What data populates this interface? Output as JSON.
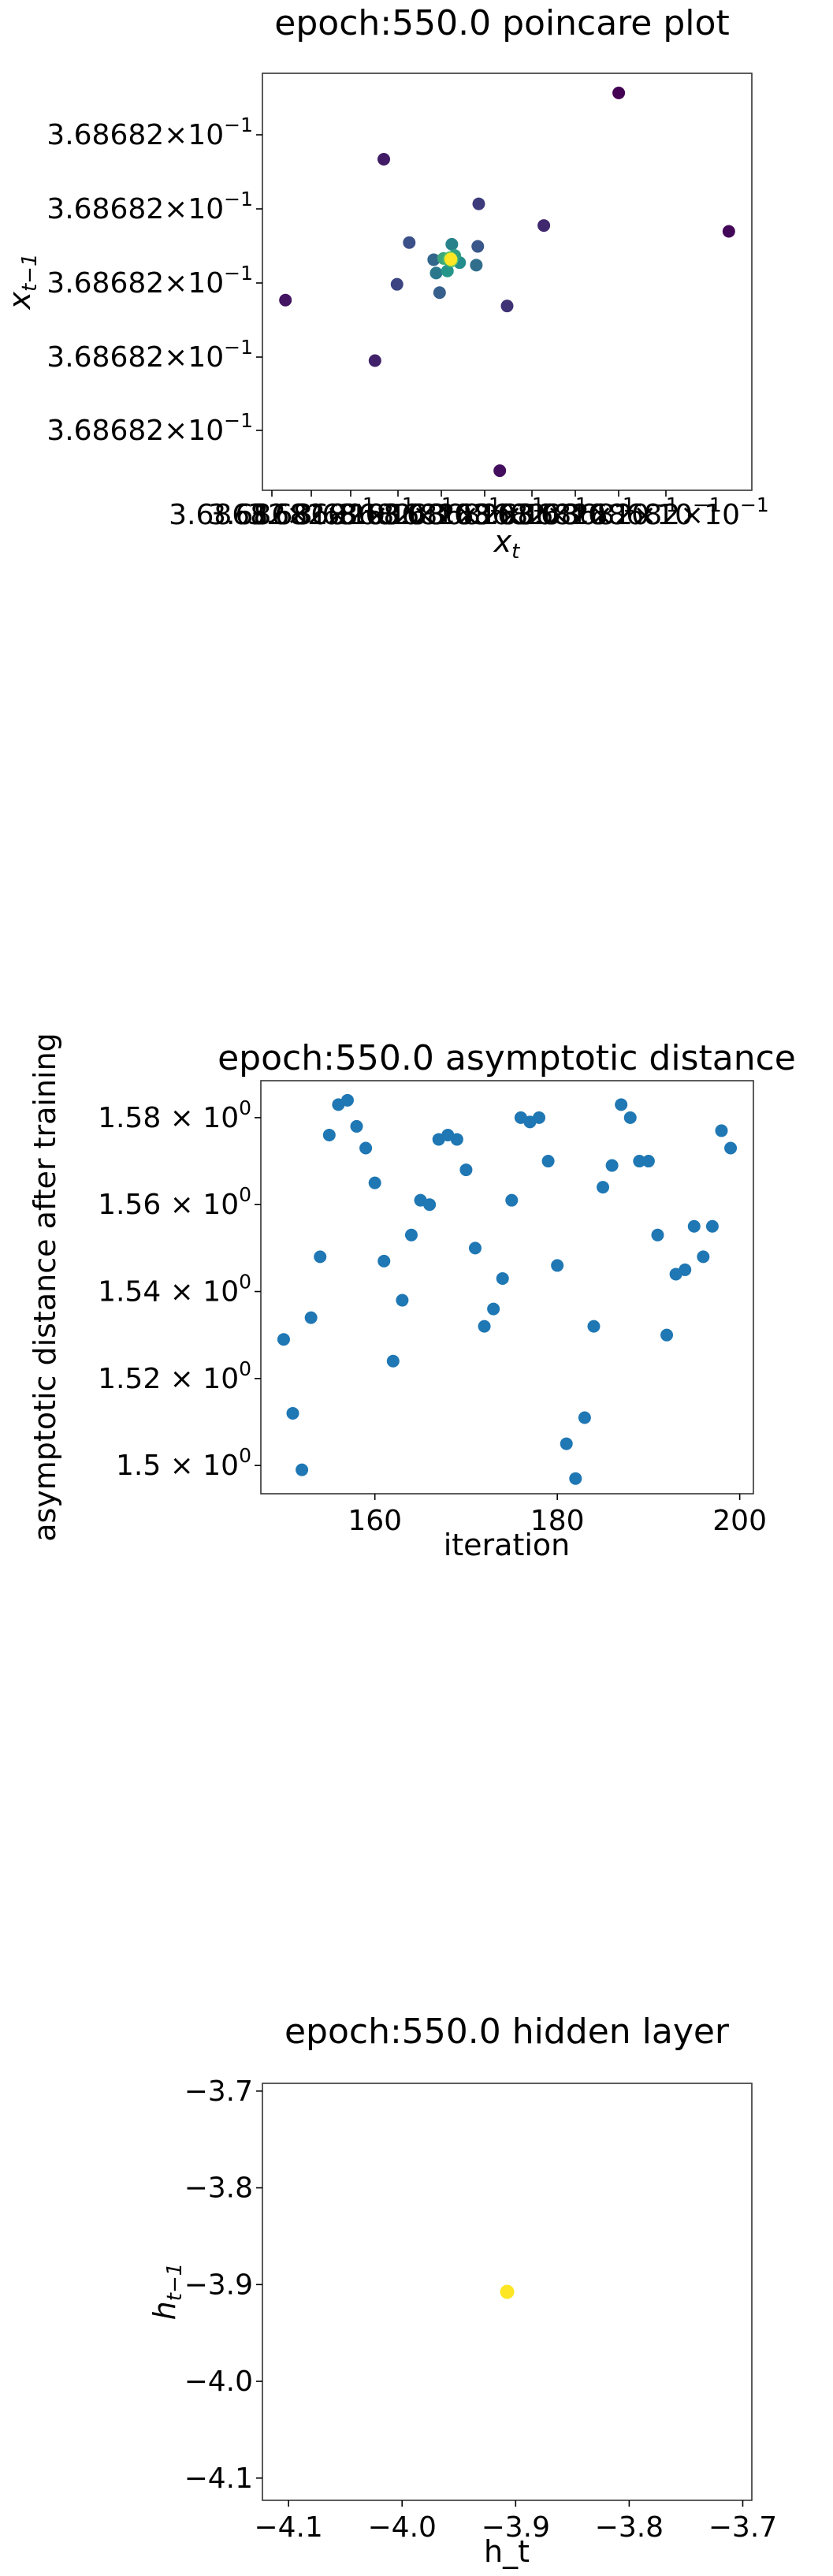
{
  "chart_data": [
    {
      "type": "scatter",
      "title": "epoch:550.0 poincare plot",
      "xlabel": "x_t",
      "ylabel": "x_{t-1}",
      "x_ticks": [
        "3.68682×10⁻¹",
        "3.68682×10⁻¹",
        "3.68682×10⁻¹",
        "3.68682×10⁻¹",
        "3.68682×10⁻¹",
        "3.68682×10⁻¹",
        "3.68682×10⁻¹",
        "3.68682×10⁻¹",
        "3.68682×10⁻¹",
        "3.68682×10⁻¹"
      ],
      "x_tick_labels_overlapping": "3.68682×10⁻¹ repeated (overlapping)",
      "y_ticks": [
        "3.68682×10⁻¹",
        "3.68682×10⁻¹",
        "3.68682×10⁻¹",
        "3.68682×10⁻¹",
        "3.68682×10⁻¹"
      ],
      "xlim": [
        0,
        1
      ],
      "ylim": [
        0,
        1
      ],
      "colormap": "viridis",
      "points": [
        {
          "x": 0.728,
          "y": 0.953,
          "c": 0.0
        },
        {
          "x": 0.953,
          "y": 0.621,
          "c": 0.02
        },
        {
          "x": 0.485,
          "y": 0.047,
          "c": 0.04
        },
        {
          "x": 0.047,
          "y": 0.456,
          "c": 0.06
        },
        {
          "x": 0.248,
          "y": 0.794,
          "c": 0.08
        },
        {
          "x": 0.23,
          "y": 0.311,
          "c": 0.1
        },
        {
          "x": 0.575,
          "y": 0.635,
          "c": 0.12
        },
        {
          "x": 0.5,
          "y": 0.442,
          "c": 0.15
        },
        {
          "x": 0.442,
          "y": 0.687,
          "c": 0.18
        },
        {
          "x": 0.275,
          "y": 0.494,
          "c": 0.21
        },
        {
          "x": 0.3,
          "y": 0.594,
          "c": 0.24
        },
        {
          "x": 0.44,
          "y": 0.585,
          "c": 0.27
        },
        {
          "x": 0.362,
          "y": 0.474,
          "c": 0.3
        },
        {
          "x": 0.35,
          "y": 0.553,
          "c": 0.33
        },
        {
          "x": 0.437,
          "y": 0.54,
          "c": 0.36
        },
        {
          "x": 0.355,
          "y": 0.521,
          "c": 0.4
        },
        {
          "x": 0.387,
          "y": 0.59,
          "c": 0.44
        },
        {
          "x": 0.403,
          "y": 0.546,
          "c": 0.48
        },
        {
          "x": 0.378,
          "y": 0.526,
          "c": 0.52
        },
        {
          "x": 0.393,
          "y": 0.563,
          "c": 0.56
        },
        {
          "x": 0.37,
          "y": 0.556,
          "c": 0.6
        },
        {
          "x": 0.38,
          "y": 0.553,
          "c": 0.64
        },
        {
          "x": 0.386,
          "y": 0.55,
          "c": 0.68
        },
        {
          "x": 0.383,
          "y": 0.558,
          "c": 0.72
        },
        {
          "x": 0.387,
          "y": 0.552,
          "c": 0.76
        },
        {
          "x": 0.385,
          "y": 0.556,
          "c": 0.8
        },
        {
          "x": 0.384,
          "y": 0.554,
          "c": 0.84
        },
        {
          "x": 0.385,
          "y": 0.553,
          "c": 0.88
        },
        {
          "x": 0.385,
          "y": 0.555,
          "c": 0.92
        },
        {
          "x": 0.385,
          "y": 0.554,
          "c": 0.96
        },
        {
          "x": 0.385,
          "y": 0.554,
          "c": 1.0
        }
      ]
    },
    {
      "type": "scatter",
      "title": "epoch:550.0 asymptotic distance",
      "xlabel": "iteration",
      "ylabel": "asymptotic distance after training",
      "x_ticks": [
        160,
        180,
        200
      ],
      "y_ticks": [
        {
          "v": 1.5,
          "label": "1.5 × 10⁰"
        },
        {
          "v": 1.52,
          "label": "1.52 × 10⁰"
        },
        {
          "v": 1.54,
          "label": "1.54 × 10⁰"
        },
        {
          "v": 1.56,
          "label": "1.56 × 10⁰"
        },
        {
          "v": 1.58,
          "label": "1.58 × 10⁰"
        }
      ],
      "xlim": [
        147.5,
        201.5
      ],
      "ylim": [
        1.4935,
        1.5885
      ],
      "color": "#1f77b4",
      "x": [
        150,
        151,
        152,
        153,
        154,
        155,
        156,
        157,
        158,
        159,
        160,
        161,
        162,
        163,
        164,
        165,
        166,
        167,
        168,
        169,
        170,
        171,
        172,
        173,
        174,
        175,
        176,
        177,
        178,
        179,
        180,
        181,
        182,
        183,
        184,
        185,
        186,
        187,
        188,
        189,
        190,
        191,
        192,
        193,
        194,
        195,
        196,
        197,
        198,
        199
      ],
      "y": [
        1.529,
        1.512,
        1.499,
        1.534,
        1.548,
        1.576,
        1.583,
        1.584,
        1.578,
        1.573,
        1.565,
        1.547,
        1.524,
        1.538,
        1.553,
        1.561,
        1.56,
        1.575,
        1.576,
        1.575,
        1.568,
        1.55,
        1.532,
        1.536,
        1.543,
        1.561,
        1.58,
        1.579,
        1.58,
        1.57,
        1.546,
        1.505,
        1.497,
        1.511,
        1.532,
        1.564,
        1.569,
        1.583,
        1.58,
        1.57,
        1.57,
        1.553,
        1.53,
        1.544,
        1.545,
        1.555,
        1.548,
        1.555,
        1.577,
        1.573
      ]
    },
    {
      "type": "scatter",
      "title": "epoch:550.0 hidden layer",
      "xlabel": "h_t",
      "ylabel": "h_{t-1}",
      "x_ticks": [
        -4.1,
        -4.0,
        -3.9,
        -3.8,
        -3.7
      ],
      "y_ticks": [
        -4.1,
        -4.0,
        -3.9,
        -3.8,
        -3.7
      ],
      "xlim": [
        -4.123,
        -3.692
      ],
      "ylim": [
        -4.123,
        -3.692
      ],
      "color": "#fde725",
      "x": [
        -3.9075
      ],
      "y": [
        -3.9075
      ]
    }
  ]
}
